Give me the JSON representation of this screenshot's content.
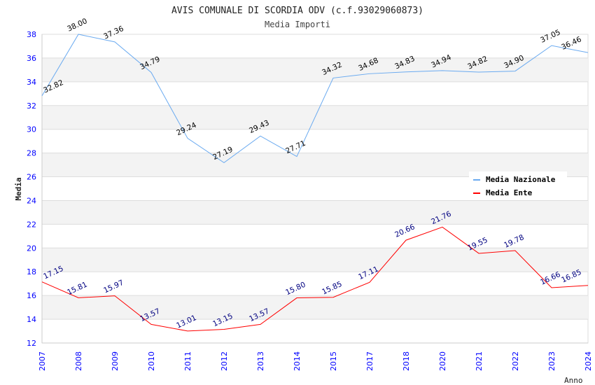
{
  "chart_data": {
    "type": "line",
    "title": "AVIS COMUNALE DI SCORDIA ODV (c.f.93029060873)",
    "subtitle": "Media Importi",
    "xlabel": "Anno",
    "ylabel": "Media",
    "ylim": [
      12,
      38
    ],
    "yticks": [
      12,
      14,
      16,
      18,
      20,
      22,
      24,
      26,
      28,
      30,
      32,
      34,
      36,
      38
    ],
    "categories": [
      "2007",
      "2008",
      "2009",
      "2010",
      "2011",
      "2012",
      "2013",
      "2014",
      "2015",
      "2017",
      "2018",
      "2020",
      "2021",
      "2022",
      "2023",
      "2024"
    ],
    "grid": true,
    "legend_position": "top-right",
    "series": [
      {
        "name": "Media Nazionale",
        "color": "#6aaaf0",
        "label_color": "#000000",
        "values": [
          32.82,
          38.0,
          37.36,
          34.79,
          29.24,
          27.19,
          29.43,
          27.71,
          34.32,
          34.68,
          34.83,
          34.94,
          34.82,
          34.9,
          37.05,
          36.46
        ]
      },
      {
        "name": "Media Ente",
        "color": "#ff0000",
        "label_color": "#000080",
        "values": [
          17.15,
          15.81,
          15.97,
          13.57,
          13.01,
          13.15,
          13.57,
          15.8,
          15.85,
          17.11,
          20.66,
          21.76,
          19.55,
          19.78,
          16.66,
          16.85
        ]
      }
    ]
  }
}
